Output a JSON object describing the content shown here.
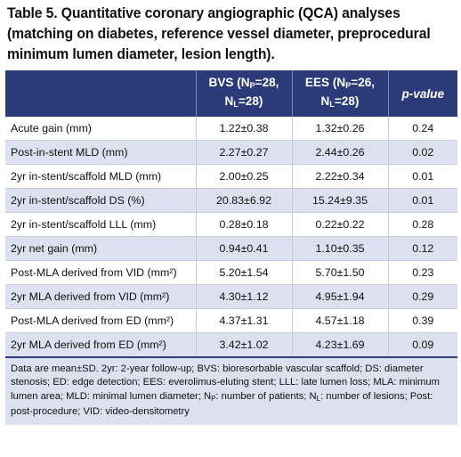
{
  "title": "Table 5. Quantitative coronary angiographic (QCA) analyses (matching on diabetes, reference vessel diameter, preprocedural minimum lumen diameter, lesion length).",
  "title_lines": [
    "Table 5. Quantitative coronary angiographic (QCA) analyses",
    "(matching on diabetes, reference vessel diameter, preprocedural",
    "minimum lumen diameter, lesion length)."
  ],
  "columns": {
    "label": "",
    "bvs": {
      "prefix": "BVS (N",
      "sub1": "P",
      "mid": "=28,",
      "line2_prefix": "N",
      "sub2": "L",
      "line2_suffix": "=28)"
    },
    "ees": {
      "prefix": "EES (N",
      "sub1": "P",
      "mid": "=26,",
      "line2_prefix": "N",
      "sub2": "L",
      "line2_suffix": "=28)"
    },
    "pvalue": "p-value"
  },
  "rows": [
    {
      "label": "Acute gain (mm)",
      "bvs": "1.22±0.38",
      "ees": "1.32±0.26",
      "p": "0.24"
    },
    {
      "label": "Post-in-stent MLD (mm)",
      "bvs": "2.27±0.27",
      "ees": "2.44±0.26",
      "p": "0.02"
    },
    {
      "label": "2yr in-stent/scaffold MLD (mm)",
      "bvs": "2.00±0.25",
      "ees": "2.22±0.34",
      "p": "0.01"
    },
    {
      "label": "2yr in-stent/scaffold DS (%)",
      "bvs": "20.83±6.92",
      "ees": "15.24±9.35",
      "p": "0.01"
    },
    {
      "label": "2yr in-stent/scaffold LLL (mm)",
      "bvs": "0.28±0.18",
      "ees": "0.22±0.22",
      "p": "0.28"
    },
    {
      "label": "2yr net gain (mm)",
      "bvs": "0.94±0.41",
      "ees": "1.10±0.35",
      "p": "0.12"
    },
    {
      "label": "Post-MLA derived from VID (mm²)",
      "bvs": "5.20±1.54",
      "ees": "5.70±1.50",
      "p": "0.23"
    },
    {
      "label": "2yr MLA derived from VID (mm²)",
      "bvs": "4.30±1.12",
      "ees": "4.95±1.94",
      "p": "0.29"
    },
    {
      "label": "Post-MLA derived from ED (mm²)",
      "bvs": "4.37±1.31",
      "ees": "4.57±1.18",
      "p": "0.39"
    },
    {
      "label": "2yr MLA derived from ED (mm²)",
      "bvs": "3.42±1.02",
      "ees": "4.23±1.69",
      "p": "0.09"
    }
  ],
  "footnote": {
    "part1": "Data are mean±SD. 2yr: 2-year follow-up; BVS: bioresorbable vascular scaffold; DS: diameter stenosis; ED: edge detection; EES: everolimus-eluting stent; LLL: late lumen loss; MLA: minimum lumen area; MLD: minimal lumen diameter; N",
    "sub1": "P",
    "part2": ": number of patients; N",
    "sub2": "L",
    "part3": ": number of lesions; Post: post-procedure; VID: video-densitometry"
  },
  "colors": {
    "header_bg": "#2b3a78",
    "stripe": "#dde0ef"
  }
}
